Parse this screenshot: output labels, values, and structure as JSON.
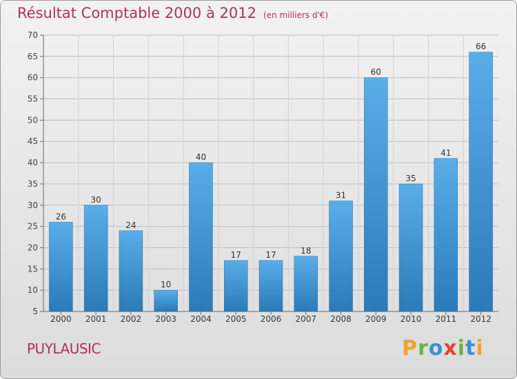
{
  "title": "Résultat Comptable 2000 à 2012",
  "subtitle": "(en milliers d'€)",
  "town": "PUYLAUSIC",
  "logo": {
    "text": "Proxiti",
    "letters": [
      "P",
      "r",
      "o",
      "x",
      "i",
      "t",
      "i"
    ]
  },
  "colors": {
    "bar_top": "#5aaee8",
    "bar_bottom": "#2a7ab8",
    "title": "#b1305a",
    "grid": "#bdbdbd"
  },
  "chart_data": {
    "type": "bar",
    "title": "Résultat Comptable 2000 à 2012",
    "xlabel": "",
    "ylabel": "",
    "ylim": [
      5,
      70
    ],
    "yticks": [
      5,
      10,
      15,
      20,
      25,
      30,
      35,
      40,
      45,
      50,
      55,
      60,
      65,
      70
    ],
    "categories": [
      "2000",
      "2001",
      "2002",
      "2003",
      "2004",
      "2005",
      "2006",
      "2007",
      "2008",
      "2009",
      "2010",
      "2011",
      "2012"
    ],
    "values": [
      26,
      30,
      24,
      10,
      40,
      17,
      17,
      18,
      31,
      60,
      35,
      41,
      66
    ],
    "grid": true,
    "legend": "none"
  }
}
